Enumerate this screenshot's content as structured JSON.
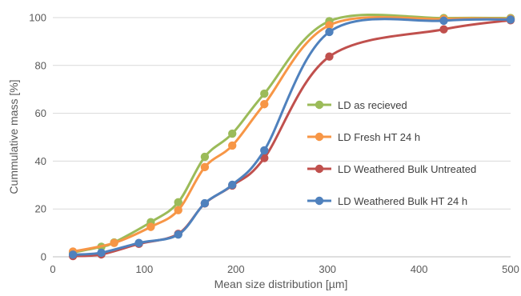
{
  "chart_data": {
    "type": "line",
    "smooth": true,
    "title": "",
    "xlabel": "Mean size distribution [µm]",
    "ylabel": "Cummulative mass [%]",
    "xlim": [
      0,
      500
    ],
    "ylim": [
      0,
      100
    ],
    "x_ticks": [
      "0",
      "100",
      "200",
      "300",
      "400",
      "500"
    ],
    "y_ticks": [
      "0",
      "20",
      "40",
      "60",
      "80",
      "100"
    ],
    "grid": "horizontal",
    "legend_position": "right-inside",
    "series": [
      {
        "name": "LD as recieved",
        "color": "#9BBB59",
        "x": [
          22,
          53,
          67,
          107,
          137,
          166,
          196,
          231,
          302,
          427,
          500
        ],
        "y": [
          1.8,
          4.2,
          6.0,
          14.5,
          22.8,
          41.8,
          51.5,
          68.2,
          98.5,
          99.8,
          99.8
        ]
      },
      {
        "name": "LD Fresh HT 24 h",
        "color": "#F79646",
        "x": [
          22,
          67,
          107,
          137,
          166,
          196,
          231,
          302,
          427,
          500
        ],
        "y": [
          2.2,
          5.8,
          12.5,
          19.5,
          37.5,
          46.5,
          63.8,
          96.8,
          99.4,
          99.5
        ]
      },
      {
        "name": "LD Weathered Bulk Untreated",
        "color": "#C0504D",
        "x": [
          22,
          53,
          94,
          137,
          166,
          196,
          231,
          302,
          427,
          500
        ],
        "y": [
          0.3,
          1.0,
          5.4,
          9.6,
          22.3,
          29.8,
          41.3,
          83.7,
          95.1,
          98.9
        ]
      },
      {
        "name": "LD Weathered Bulk HT 24 h",
        "color": "#4F81BD",
        "x": [
          22,
          53,
          94,
          137,
          166,
          196,
          231,
          302,
          427,
          500
        ],
        "y": [
          0.9,
          1.7,
          5.8,
          9.3,
          22.4,
          30.1,
          44.5,
          94.0,
          98.7,
          99.2
        ]
      }
    ]
  }
}
